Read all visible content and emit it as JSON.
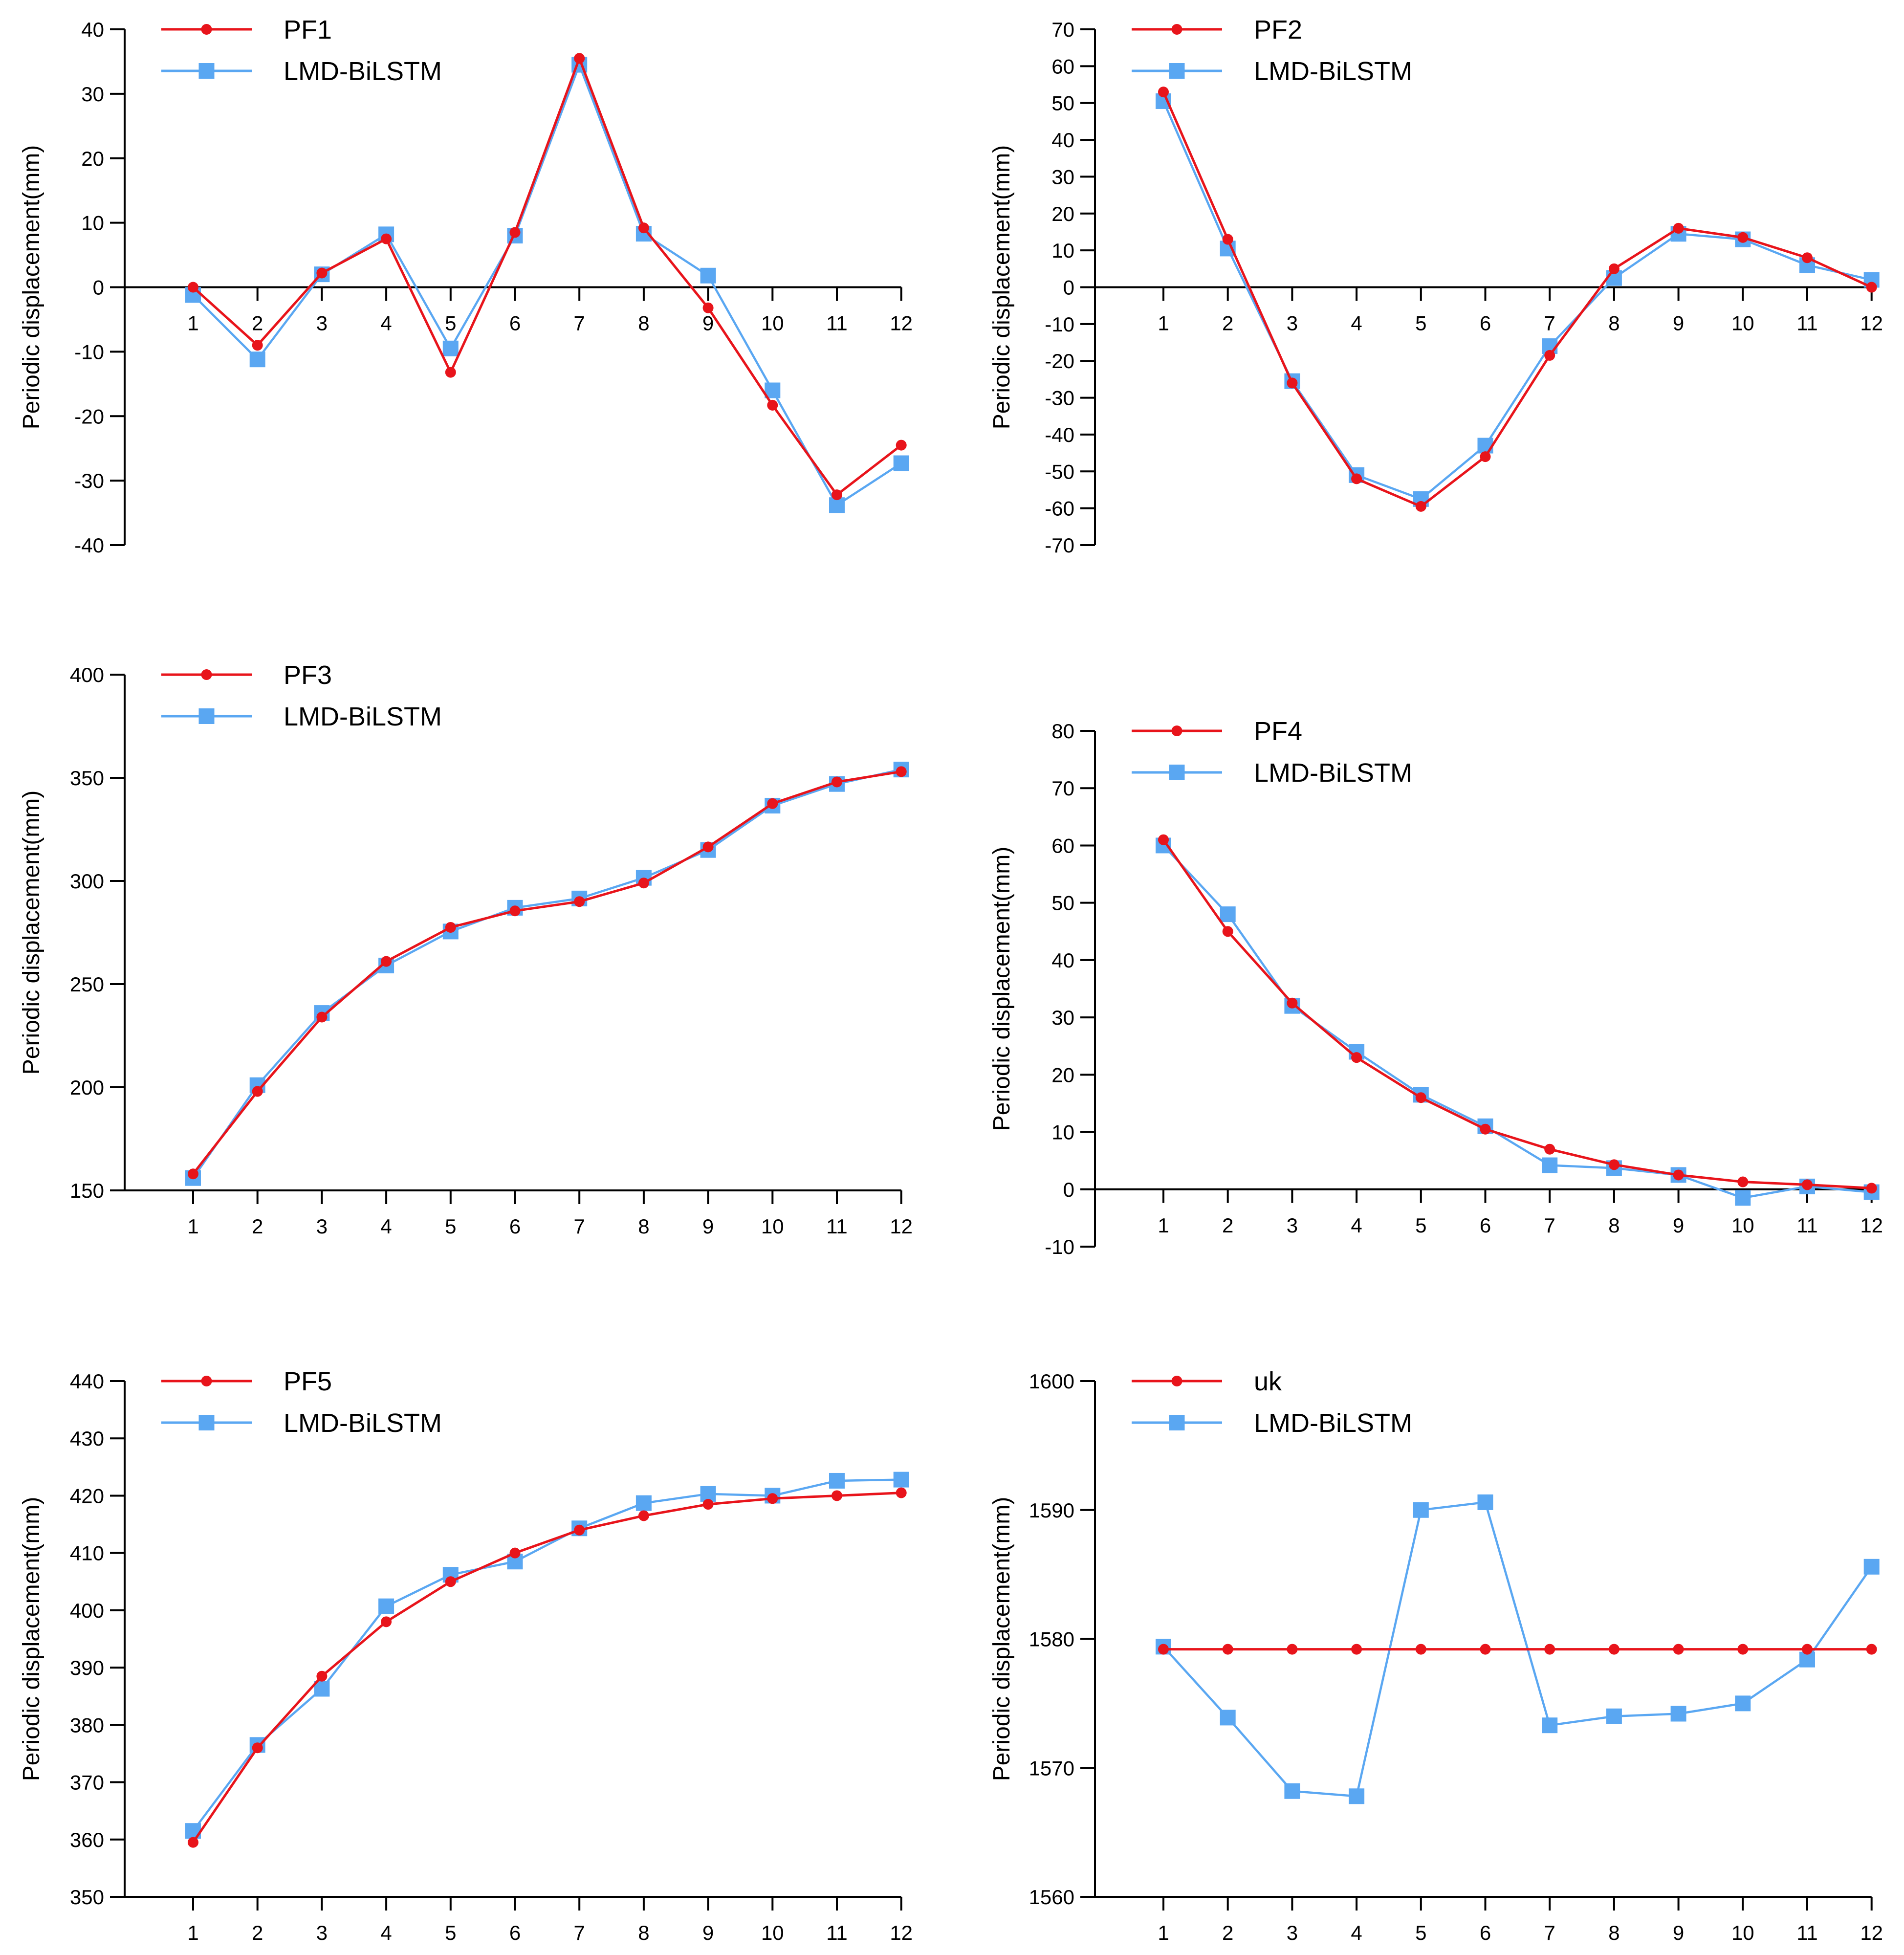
{
  "chart_data": [
    {
      "type": "line",
      "x": [
        1,
        2,
        3,
        4,
        5,
        6,
        7,
        8,
        9,
        10,
        11,
        12
      ],
      "ylabel": "Periodic displacement(mm)",
      "ylim": [
        -40,
        40
      ],
      "yticks": [
        -40,
        -30,
        -20,
        -10,
        0,
        10,
        20,
        30,
        40
      ],
      "legend_position": "top-left",
      "series": [
        {
          "name": "PF1",
          "color": "#e8141b",
          "marker": "circle",
          "values": [
            0,
            -9,
            2.2,
            7.5,
            -13.2,
            8.5,
            35.5,
            9.2,
            -3.2,
            -18.3,
            -32.2,
            -24.5
          ]
        },
        {
          "name": "LMD-BiLSTM",
          "color": "#5aa7f2",
          "marker": "square",
          "values": [
            -1.2,
            -11.2,
            2,
            8.2,
            -9.5,
            8,
            34.5,
            8.3,
            1.8,
            -16,
            -33.8,
            -27.3
          ]
        }
      ]
    },
    {
      "type": "line",
      "x": [
        1,
        2,
        3,
        4,
        5,
        6,
        7,
        8,
        9,
        10,
        11,
        12
      ],
      "ylabel": "Periodic displacement(mm)",
      "ylim": [
        -70,
        70
      ],
      "yticks": [
        -70,
        -60,
        -50,
        -40,
        -30,
        -20,
        -10,
        0,
        10,
        20,
        30,
        40,
        50,
        60,
        70
      ],
      "legend_position": "top-left",
      "series": [
        {
          "name": "PF2",
          "color": "#e8141b",
          "marker": "circle",
          "values": [
            53,
            13,
            -26,
            -52,
            -59.5,
            -46,
            -18.5,
            5,
            16,
            13.5,
            8,
            0
          ]
        },
        {
          "name": "LMD-BiLSTM",
          "color": "#5aa7f2",
          "marker": "square",
          "values": [
            50.5,
            10.5,
            -25.5,
            -51,
            -57.5,
            -43,
            -16,
            2.5,
            14.5,
            13,
            6,
            2
          ]
        }
      ]
    },
    {
      "type": "line",
      "x": [
        1,
        2,
        3,
        4,
        5,
        6,
        7,
        8,
        9,
        10,
        11,
        12
      ],
      "ylabel": "Periodic displacement(mm)",
      "ylim": [
        150,
        400
      ],
      "yticks": [
        150,
        200,
        250,
        300,
        350,
        400
      ],
      "legend_position": "top-left",
      "series": [
        {
          "name": "PF3",
          "color": "#e8141b",
          "marker": "circle",
          "values": [
            158,
            198,
            234,
            261,
            277.5,
            285.5,
            290,
            299,
            316.5,
            337.5,
            348,
            353
          ]
        },
        {
          "name": "LMD-BiLSTM",
          "color": "#5aa7f2",
          "marker": "square",
          "values": [
            156,
            201,
            236,
            259,
            275.5,
            287,
            291.5,
            301.5,
            315,
            336.5,
            347,
            354
          ]
        }
      ]
    },
    {
      "type": "line",
      "x": [
        1,
        2,
        3,
        4,
        5,
        6,
        7,
        8,
        9,
        10,
        11,
        12
      ],
      "ylabel": "Periodic displacement(mm)",
      "ylim": [
        -10,
        80
      ],
      "yticks": [
        -10,
        0,
        10,
        20,
        30,
        40,
        50,
        60,
        70,
        80
      ],
      "legend_position": "top-left",
      "series": [
        {
          "name": "PF4",
          "color": "#e8141b",
          "marker": "circle",
          "values": [
            61,
            45,
            32.5,
            23,
            16,
            10.5,
            7,
            4.3,
            2.5,
            1.3,
            0.8,
            0.2
          ]
        },
        {
          "name": "LMD-BiLSTM",
          "color": "#5aa7f2",
          "marker": "square",
          "values": [
            60,
            48,
            32,
            24,
            16.5,
            11,
            4.2,
            3.7,
            2.5,
            -1.5,
            0.5,
            -0.5
          ]
        }
      ]
    },
    {
      "type": "line",
      "x": [
        1,
        2,
        3,
        4,
        5,
        6,
        7,
        8,
        9,
        10,
        11,
        12
      ],
      "ylabel": "Periodic displacement(mm)",
      "ylim": [
        350,
        440
      ],
      "yticks": [
        350,
        360,
        370,
        380,
        390,
        400,
        410,
        420,
        430,
        440
      ],
      "legend_position": "top-left",
      "series": [
        {
          "name": "PF5",
          "color": "#e8141b",
          "marker": "circle",
          "values": [
            359.5,
            376,
            388.5,
            398,
            405,
            410,
            414,
            416.5,
            418.5,
            419.5,
            420,
            420.5
          ]
        },
        {
          "name": "LMD-BiLSTM",
          "color": "#5aa7f2",
          "marker": "square",
          "values": [
            361.5,
            376.5,
            386.3,
            400.7,
            406.2,
            408.5,
            414.3,
            418.7,
            420.3,
            420,
            422.6,
            422.8
          ]
        }
      ]
    },
    {
      "type": "line",
      "x": [
        1,
        2,
        3,
        4,
        5,
        6,
        7,
        8,
        9,
        10,
        11,
        12
      ],
      "ylabel": "Periodic displacement(mm)",
      "ylim": [
        1560,
        1600
      ],
      "yticks": [
        1560,
        1570,
        1580,
        1590,
        1600
      ],
      "legend_position": "top-left",
      "series": [
        {
          "name": "uk",
          "color": "#e8141b",
          "marker": "circle",
          "values": [
            1579.2,
            1579.2,
            1579.2,
            1579.2,
            1579.2,
            1579.2,
            1579.2,
            1579.2,
            1579.2,
            1579.2,
            1579.2,
            1579.2
          ]
        },
        {
          "name": "LMD-BiLSTM",
          "color": "#5aa7f2",
          "marker": "square",
          "values": [
            1579.4,
            1573.9,
            1568.2,
            1567.8,
            1590,
            1590.6,
            1573.3,
            1574,
            1574.2,
            1575,
            1578.4,
            1585.6
          ]
        }
      ]
    }
  ]
}
